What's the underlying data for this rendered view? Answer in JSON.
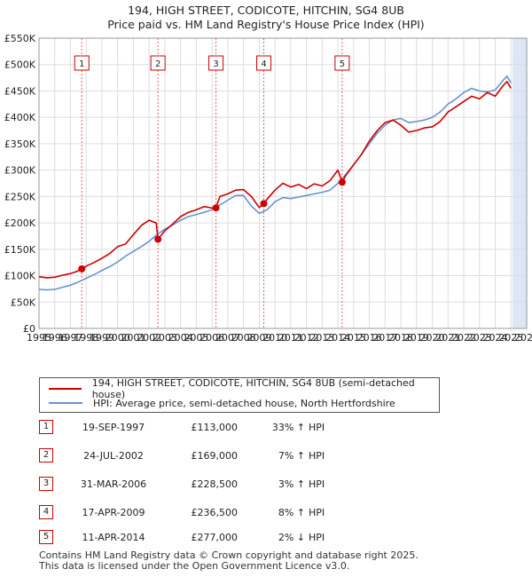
{
  "title": {
    "line1": "194, HIGH STREET, CODICOTE, HITCHIN, SG4 8UB",
    "line2": "Price paid vs. HM Land Registry's House Price Index (HPI)"
  },
  "colors": {
    "price_line": "#cc0000",
    "hpi_line": "#6a93cf",
    "shade": "#dce6f4",
    "grid": "#dddddd",
    "marker_box": "#cc0000",
    "dashed": "#e06060"
  },
  "chart_data": {
    "type": "line",
    "title": "194, HIGH STREET, CODICOTE, HITCHIN, SG4 8UB — Price paid vs. HM Land Registry's House Price Index (HPI)",
    "xlim": [
      1995,
      2026
    ],
    "ylim": [
      0,
      550000
    ],
    "y_ticks": [
      0,
      50000,
      100000,
      150000,
      200000,
      250000,
      300000,
      350000,
      400000,
      450000,
      500000,
      550000
    ],
    "y_tick_labels": [
      "£0",
      "£50K",
      "£100K",
      "£150K",
      "£200K",
      "£250K",
      "£300K",
      "£350K",
      "£400K",
      "£450K",
      "£500K",
      "£550K"
    ],
    "x_ticks": [
      1995,
      1996,
      1997,
      1998,
      1999,
      2000,
      2001,
      2002,
      2003,
      2004,
      2005,
      2006,
      2007,
      2008,
      2009,
      2010,
      2011,
      2012,
      2013,
      2014,
      2015,
      2016,
      2017,
      2018,
      2019,
      2020,
      2021,
      2022,
      2023,
      2024,
      2025,
      2026
    ],
    "x_tick_labels": [
      "1995",
      "1996",
      "1997",
      "1998",
      "1999",
      "2000",
      "2001",
      "2002",
      "2003",
      "2004",
      "2005",
      "2006",
      "2007",
      "2008",
      "2009",
      "2010",
      "2011",
      "2012",
      "2013",
      "2014",
      "2015",
      "2016",
      "2017",
      "2018",
      "2019",
      "2020",
      "2021",
      "2022",
      "2023",
      "2024",
      "2025",
      "2026"
    ],
    "future_shade_from": 2025.1,
    "grid": true,
    "series": [
      {
        "name": "194, HIGH STREET, CODICOTE, HITCHIN, SG4 8UB (semi-detached house)",
        "color": "#cc0000",
        "x": [
          1995.0,
          1995.5,
          1996.0,
          1996.5,
          1997.0,
          1997.4,
          1997.72,
          1998.0,
          1998.5,
          1999.0,
          1999.5,
          2000.0,
          2000.5,
          2001.0,
          2001.5,
          2002.0,
          2002.45,
          2002.56,
          2003.0,
          2003.5,
          2004.0,
          2004.5,
          2005.0,
          2005.5,
          2006.0,
          2006.25,
          2006.5,
          2007.0,
          2007.5,
          2008.0,
          2008.5,
          2009.0,
          2009.29,
          2009.5,
          2010.0,
          2010.5,
          2011.0,
          2011.5,
          2012.0,
          2012.5,
          2013.0,
          2013.5,
          2014.0,
          2014.27,
          2014.5,
          2015.0,
          2015.5,
          2016.0,
          2016.5,
          2017.0,
          2017.5,
          2018.0,
          2018.5,
          2019.0,
          2019.5,
          2020.0,
          2020.5,
          2021.0,
          2021.5,
          2022.0,
          2022.5,
          2023.0,
          2023.5,
          2024.0,
          2024.5,
          2024.75,
          2025.0
        ],
        "y": [
          98000,
          96000,
          97000,
          101000,
          104000,
          108000,
          113000,
          118000,
          125000,
          133000,
          142000,
          155000,
          160000,
          178000,
          195000,
          205000,
          200000,
          169000,
          185000,
          198000,
          212000,
          220000,
          225000,
          231000,
          228000,
          228500,
          250000,
          255000,
          262000,
          263000,
          250000,
          229000,
          236500,
          245000,
          262000,
          275000,
          268000,
          273000,
          265000,
          274000,
          270000,
          280000,
          300000,
          277000,
          290000,
          310000,
          330000,
          355000,
          375000,
          390000,
          395000,
          385000,
          372000,
          375000,
          380000,
          382000,
          392000,
          410000,
          420000,
          430000,
          440000,
          435000,
          447000,
          440000,
          460000,
          468000,
          455000
        ]
      },
      {
        "name": "HPI: Average price, semi-detached house, North Hertfordshire",
        "color": "#6a93cf",
        "x": [
          1995.0,
          1995.5,
          1996.0,
          1996.5,
          1997.0,
          1997.5,
          1998.0,
          1998.5,
          1999.0,
          1999.5,
          2000.0,
          2000.5,
          2001.0,
          2001.5,
          2002.0,
          2002.5,
          2003.0,
          2003.5,
          2004.0,
          2004.5,
          2005.0,
          2005.5,
          2006.0,
          2006.5,
          2007.0,
          2007.5,
          2008.0,
          2008.5,
          2009.0,
          2009.5,
          2010.0,
          2010.5,
          2011.0,
          2011.5,
          2012.0,
          2012.5,
          2013.0,
          2013.5,
          2014.0,
          2014.5,
          2015.0,
          2015.5,
          2016.0,
          2016.5,
          2017.0,
          2017.5,
          2018.0,
          2018.5,
          2019.0,
          2019.5,
          2020.0,
          2020.5,
          2021.0,
          2021.5,
          2022.0,
          2022.5,
          2023.0,
          2023.5,
          2024.0,
          2024.5,
          2024.75,
          2025.0
        ],
        "y": [
          74000,
          73000,
          74000,
          78000,
          82000,
          88000,
          95000,
          102000,
          110000,
          117000,
          126000,
          137000,
          146000,
          155000,
          165000,
          178000,
          188000,
          196000,
          205000,
          212000,
          216000,
          220000,
          225000,
          234000,
          243000,
          252000,
          252000,
          232000,
          218000,
          225000,
          240000,
          248000,
          246000,
          249000,
          252000,
          255000,
          258000,
          262000,
          275000,
          292000,
          310000,
          330000,
          350000,
          370000,
          385000,
          395000,
          398000,
          390000,
          392000,
          395000,
          400000,
          410000,
          425000,
          435000,
          447000,
          455000,
          450000,
          448000,
          452000,
          470000,
          478000,
          465000
        ]
      }
    ],
    "sales": [
      {
        "id": "1",
        "x": 1997.72,
        "price": 113000
      },
      {
        "id": "2",
        "x": 2002.56,
        "price": 169000
      },
      {
        "id": "3",
        "x": 2006.25,
        "price": 228500
      },
      {
        "id": "4",
        "x": 2009.29,
        "price": 236500
      },
      {
        "id": "5",
        "x": 2014.27,
        "price": 277000
      }
    ]
  },
  "legend": {
    "items": [
      {
        "label": "194, HIGH STREET, CODICOTE, HITCHIN, SG4 8UB (semi-detached house)"
      },
      {
        "label": "HPI: Average price, semi-detached house, North Hertfordshire"
      }
    ]
  },
  "sales_table": [
    {
      "num": "1",
      "date": "19-SEP-1997",
      "price": "£113,000",
      "pct": "33% ↑",
      "hpi": "HPI"
    },
    {
      "num": "2",
      "date": "24-JUL-2002",
      "price": "£169,000",
      "pct": "7% ↑",
      "hpi": "HPI"
    },
    {
      "num": "3",
      "date": "31-MAR-2006",
      "price": "£228,500",
      "pct": "3% ↑",
      "hpi": "HPI"
    },
    {
      "num": "4",
      "date": "17-APR-2009",
      "price": "£236,500",
      "pct": "8% ↑",
      "hpi": "HPI"
    },
    {
      "num": "5",
      "date": "11-APR-2014",
      "price": "£277,000",
      "pct": "2% ↓",
      "hpi": "HPI"
    }
  ],
  "footer": {
    "line1": "Contains HM Land Registry data © Crown copyright and database right 2025.",
    "line2": "This data is licensed under the Open Government Licence v3.0."
  }
}
